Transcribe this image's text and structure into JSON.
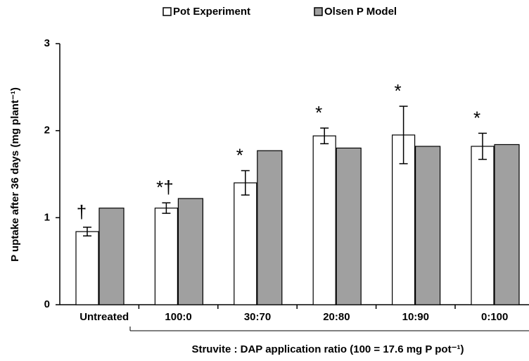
{
  "chart_data": {
    "type": "bar",
    "ylabel": "P uptake after 36 days (mg plant⁻¹)",
    "xlabel": "Struvite : DAP application ratio (100 = 17.6 mg P pot⁻¹)",
    "categories": [
      "Untreated",
      "100:0",
      "30:70",
      "20:80",
      "10:90",
      "0:100"
    ],
    "series": [
      {
        "name": "Pot Experiment",
        "color": "#ffffff",
        "values": [
          0.84,
          1.11,
          1.4,
          1.94,
          1.95,
          1.82
        ],
        "errors": [
          0.05,
          0.06,
          0.14,
          0.09,
          0.33,
          0.15
        ]
      },
      {
        "name": "Olsen P Model",
        "color": "#a0a0a0",
        "values": [
          1.11,
          1.22,
          1.77,
          1.8,
          1.82,
          1.84
        ]
      }
    ],
    "annotations": [
      "†",
      "*†",
      "*",
      "*",
      "*",
      "*"
    ],
    "ylim": [
      0,
      3
    ],
    "yticks": [
      0,
      1,
      2,
      3
    ],
    "grid": false
  }
}
